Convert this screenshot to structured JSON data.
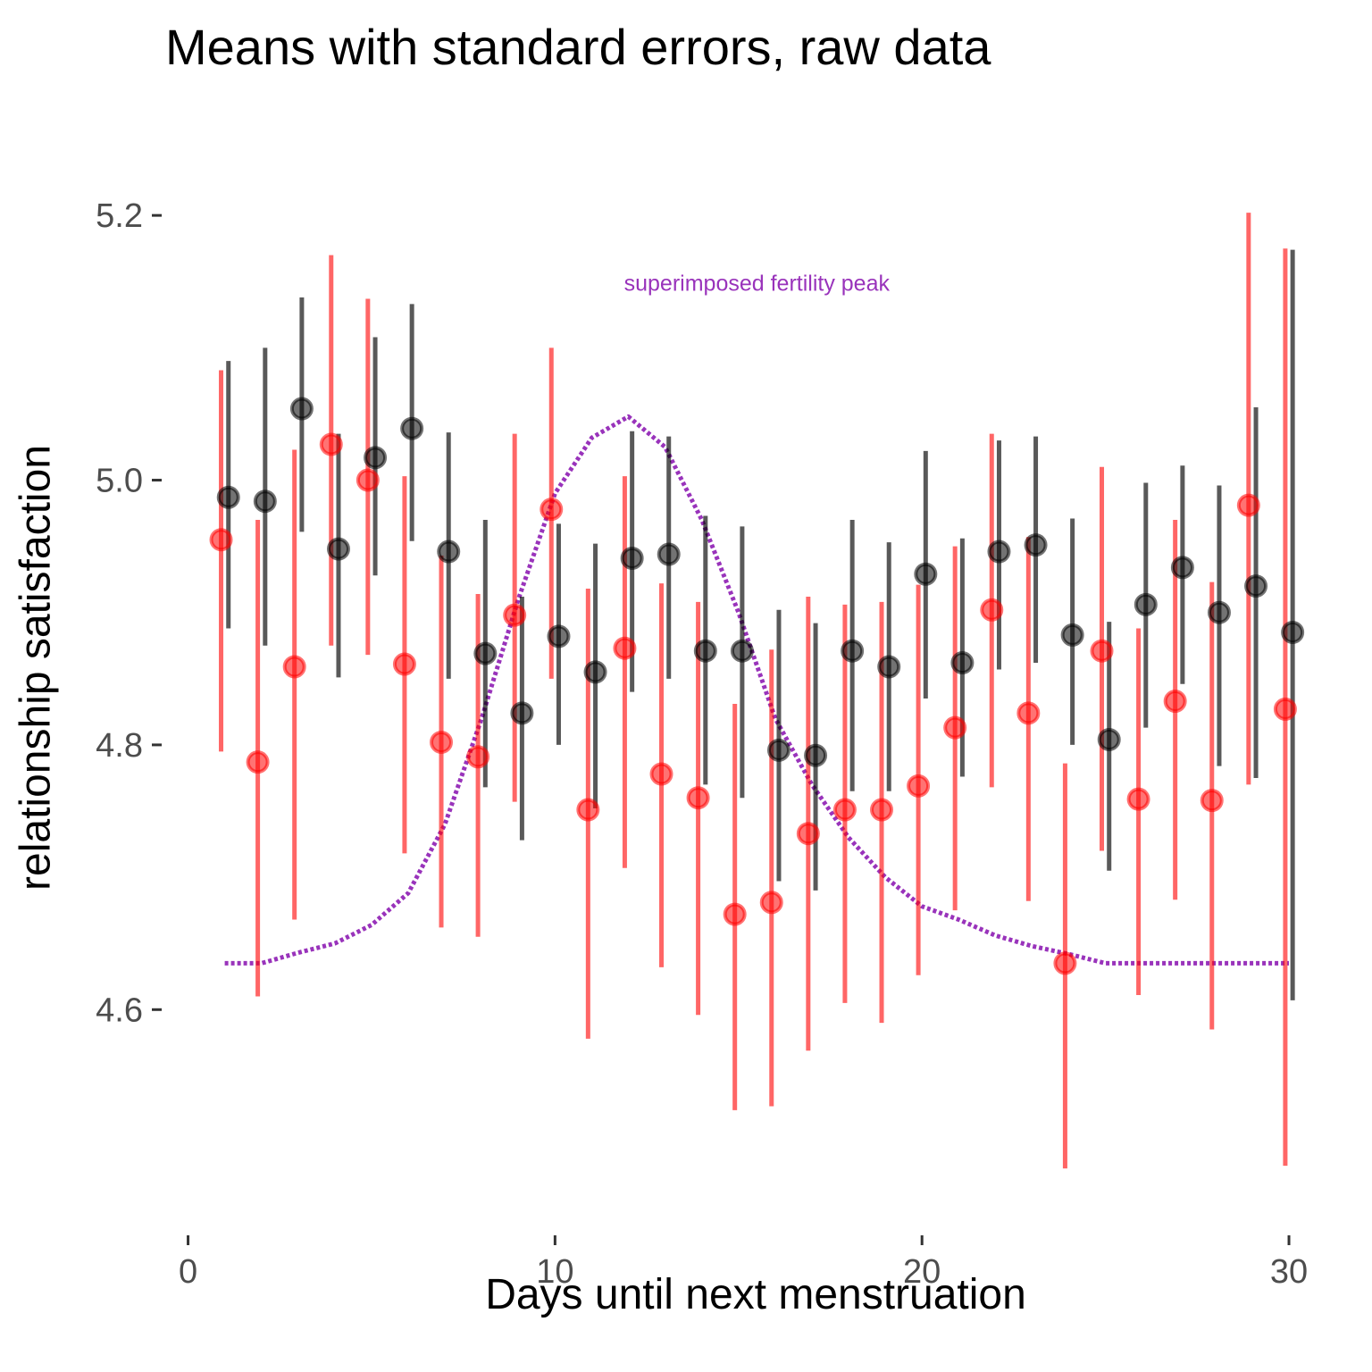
{
  "chart_data": {
    "type": "scatter",
    "title": "Means with standard errors, raw data",
    "xlabel": "Days until next menstruation",
    "ylabel": "relationship satisfaction",
    "xlim": [
      -0.5,
      30.9
    ],
    "ylim": [
      4.445,
      5.275
    ],
    "xticks": [
      0,
      10,
      20,
      30
    ],
    "yticks": [
      4.6,
      4.8,
      5.0,
      5.2
    ],
    "xtick_labels": [
      "0",
      "10",
      "20",
      "30"
    ],
    "ytick_labels": [
      "4.6",
      "4.8",
      "5.0",
      "5.2"
    ],
    "grid": false,
    "annotation": {
      "text": "superimposed fertility peak",
      "x": 15.5,
      "y": 5.143,
      "color": "#9933bb"
    },
    "series": [
      {
        "color": "#ff0000",
        "points": [
          {
            "x": 0.9,
            "y": 4.955,
            "lo": 4.795,
            "hi": 5.083
          },
          {
            "x": 1.9,
            "y": 4.787,
            "lo": 4.61,
            "hi": 4.97
          },
          {
            "x": 2.9,
            "y": 4.859,
            "lo": 4.668,
            "hi": 5.023
          },
          {
            "x": 3.9,
            "y": 5.027,
            "lo": 4.875,
            "hi": 5.17
          },
          {
            "x": 4.9,
            "y": 5.0,
            "lo": 4.868,
            "hi": 5.137
          },
          {
            "x": 5.9,
            "y": 4.861,
            "lo": 4.718,
            "hi": 5.003
          },
          {
            "x": 6.9,
            "y": 4.802,
            "lo": 4.662,
            "hi": 4.943
          },
          {
            "x": 7.9,
            "y": 4.791,
            "lo": 4.655,
            "hi": 4.914
          },
          {
            "x": 8.9,
            "y": 4.898,
            "lo": 4.757,
            "hi": 5.035
          },
          {
            "x": 9.9,
            "y": 4.978,
            "lo": 4.85,
            "hi": 5.1
          },
          {
            "x": 10.9,
            "y": 4.751,
            "lo": 4.578,
            "hi": 4.918
          },
          {
            "x": 11.9,
            "y": 4.873,
            "lo": 4.707,
            "hi": 5.003
          },
          {
            "x": 12.9,
            "y": 4.778,
            "lo": 4.632,
            "hi": 4.922
          },
          {
            "x": 13.9,
            "y": 4.76,
            "lo": 4.596,
            "hi": 4.908
          },
          {
            "x": 14.9,
            "y": 4.672,
            "lo": 4.524,
            "hi": 4.831
          },
          {
            "x": 15.9,
            "y": 4.681,
            "lo": 4.527,
            "hi": 4.872
          },
          {
            "x": 16.9,
            "y": 4.733,
            "lo": 4.569,
            "hi": 4.912
          },
          {
            "x": 17.9,
            "y": 4.751,
            "lo": 4.605,
            "hi": 4.906
          },
          {
            "x": 18.9,
            "y": 4.751,
            "lo": 4.59,
            "hi": 4.908
          },
          {
            "x": 19.9,
            "y": 4.769,
            "lo": 4.626,
            "hi": 4.921
          },
          {
            "x": 20.9,
            "y": 4.813,
            "lo": 4.675,
            "hi": 4.95
          },
          {
            "x": 21.9,
            "y": 4.902,
            "lo": 4.768,
            "hi": 5.035
          },
          {
            "x": 22.9,
            "y": 4.824,
            "lo": 4.682,
            "hi": 4.957
          },
          {
            "x": 23.9,
            "y": 4.635,
            "lo": 4.48,
            "hi": 4.786
          },
          {
            "x": 24.9,
            "y": 4.871,
            "lo": 4.72,
            "hi": 5.01
          },
          {
            "x": 25.9,
            "y": 4.759,
            "lo": 4.611,
            "hi": 4.888
          },
          {
            "x": 26.9,
            "y": 4.833,
            "lo": 4.683,
            "hi": 4.97
          },
          {
            "x": 27.9,
            "y": 4.758,
            "lo": 4.585,
            "hi": 4.923
          },
          {
            "x": 28.9,
            "y": 4.981,
            "lo": 4.77,
            "hi": 5.202
          },
          {
            "x": 29.9,
            "y": 4.827,
            "lo": 4.482,
            "hi": 5.175
          }
        ]
      },
      {
        "color": "#000000",
        "points": [
          {
            "x": 1.1,
            "y": 4.987,
            "lo": 4.888,
            "hi": 5.09
          },
          {
            "x": 2.1,
            "y": 4.984,
            "lo": 4.875,
            "hi": 5.1
          },
          {
            "x": 3.1,
            "y": 5.054,
            "lo": 4.961,
            "hi": 5.138
          },
          {
            "x": 4.1,
            "y": 4.948,
            "lo": 4.851,
            "hi": 5.035
          },
          {
            "x": 5.1,
            "y": 5.017,
            "lo": 4.928,
            "hi": 5.108
          },
          {
            "x": 6.1,
            "y": 5.039,
            "lo": 4.954,
            "hi": 5.133
          },
          {
            "x": 7.1,
            "y": 4.946,
            "lo": 4.85,
            "hi": 5.036
          },
          {
            "x": 8.1,
            "y": 4.869,
            "lo": 4.768,
            "hi": 4.97
          },
          {
            "x": 9.1,
            "y": 4.824,
            "lo": 4.728,
            "hi": 4.912
          },
          {
            "x": 10.1,
            "y": 4.882,
            "lo": 4.8,
            "hi": 4.967
          },
          {
            "x": 11.1,
            "y": 4.855,
            "lo": 4.752,
            "hi": 4.952
          },
          {
            "x": 12.1,
            "y": 4.941,
            "lo": 4.84,
            "hi": 5.037
          },
          {
            "x": 13.1,
            "y": 4.944,
            "lo": 4.85,
            "hi": 5.033
          },
          {
            "x": 14.1,
            "y": 4.871,
            "lo": 4.77,
            "hi": 4.973
          },
          {
            "x": 15.1,
            "y": 4.871,
            "lo": 4.76,
            "hi": 4.965
          },
          {
            "x": 16.1,
            "y": 4.796,
            "lo": 4.697,
            "hi": 4.902
          },
          {
            "x": 17.1,
            "y": 4.792,
            "lo": 4.69,
            "hi": 4.892
          },
          {
            "x": 18.1,
            "y": 4.871,
            "lo": 4.765,
            "hi": 4.97
          },
          {
            "x": 19.1,
            "y": 4.859,
            "lo": 4.765,
            "hi": 4.953
          },
          {
            "x": 20.1,
            "y": 4.929,
            "lo": 4.835,
            "hi": 5.022
          },
          {
            "x": 21.1,
            "y": 4.862,
            "lo": 4.776,
            "hi": 4.956
          },
          {
            "x": 22.1,
            "y": 4.946,
            "lo": 4.857,
            "hi": 5.03
          },
          {
            "x": 23.1,
            "y": 4.951,
            "lo": 4.862,
            "hi": 5.033
          },
          {
            "x": 24.1,
            "y": 4.883,
            "lo": 4.8,
            "hi": 4.971
          },
          {
            "x": 25.1,
            "y": 4.804,
            "lo": 4.705,
            "hi": 4.893
          },
          {
            "x": 26.1,
            "y": 4.906,
            "lo": 4.813,
            "hi": 4.998
          },
          {
            "x": 27.1,
            "y": 4.934,
            "lo": 4.846,
            "hi": 5.011
          },
          {
            "x": 28.1,
            "y": 4.9,
            "lo": 4.784,
            "hi": 4.996
          },
          {
            "x": 29.1,
            "y": 4.92,
            "lo": 4.775,
            "hi": 5.055
          },
          {
            "x": 30.1,
            "y": 4.885,
            "lo": 4.607,
            "hi": 5.174
          }
        ]
      },
      {
        "color": "#9933bb",
        "style": "dotted",
        "x": [
          1,
          2,
          3,
          4,
          5,
          6,
          7,
          8,
          9,
          10,
          11,
          12,
          13,
          14,
          15,
          16,
          17,
          18,
          19,
          20,
          21,
          22,
          23,
          24,
          25,
          26,
          27,
          28,
          29,
          30
        ],
        "y": [
          4.635,
          4.635,
          4.643,
          4.65,
          4.664,
          4.688,
          4.74,
          4.82,
          4.91,
          4.99,
          5.032,
          5.048,
          5.025,
          4.97,
          4.9,
          4.82,
          4.77,
          4.73,
          4.7,
          4.678,
          4.668,
          4.656,
          4.648,
          4.642,
          4.635,
          4.635,
          4.635,
          4.635,
          4.635,
          4.635
        ]
      }
    ]
  }
}
